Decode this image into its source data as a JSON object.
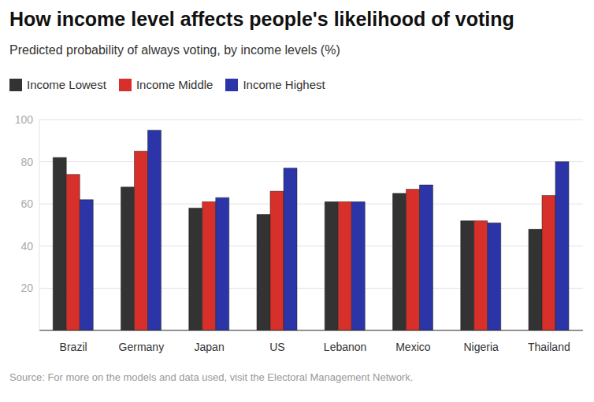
{
  "chart_data": {
    "type": "bar",
    "title": "How income level affects people's likelihood of voting",
    "subtitle": "Predicted probability of always voting, by income levels (%)",
    "source": "Source: For more on the models and data used, visit the Electoral Management Network.",
    "categories": [
      "Brazil",
      "Germany",
      "Japan",
      "US",
      "Lebanon",
      "Mexico",
      "Nigeria",
      "Thailand"
    ],
    "series": [
      {
        "name": "Income Lowest",
        "color": "#333333",
        "values": [
          82,
          68,
          58,
          55,
          61,
          65,
          52,
          48
        ]
      },
      {
        "name": "Income Middle",
        "color": "#d7302a",
        "values": [
          74,
          85,
          61,
          66,
          61,
          67,
          52,
          64
        ]
      },
      {
        "name": "Income Highest",
        "color": "#2b35a8",
        "values": [
          62,
          95,
          63,
          77,
          61,
          69,
          51,
          80
        ]
      }
    ],
    "ylim": [
      0,
      100
    ],
    "yticks": [
      20,
      40,
      60,
      80,
      100
    ],
    "grid": true,
    "legend": "top-left"
  }
}
